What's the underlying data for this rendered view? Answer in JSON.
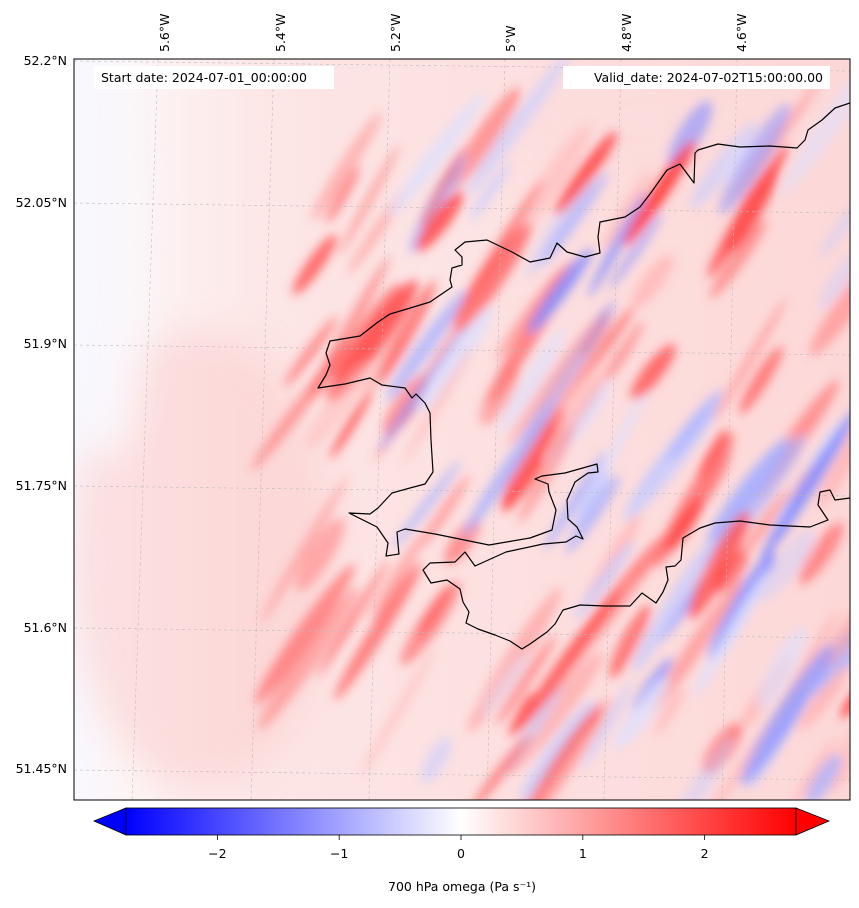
{
  "map": {
    "start_date_label": "Start date: 2024-07-01_00:00:00",
    "valid_date_label": "Valid_date: 2024-07-02T15:00:00.00",
    "lon_ticks": [
      "5.6°W",
      "5.4°W",
      "5.2°W",
      "5°W",
      "4.8°W",
      "4.6°W"
    ],
    "lat_ticks": [
      "52.2°N",
      "52.05°N",
      "51.9°N",
      "51.75°N",
      "51.6°N",
      "51.45°N"
    ],
    "field": "700 hPa omega",
    "gridlines": true,
    "coastline_color": "#000000"
  },
  "colorbar": {
    "label": "700 hPa omega (Pa s⁻¹)",
    "ticks": [
      "−2",
      "−1",
      "0",
      "1",
      "2"
    ],
    "tick_values": [
      -2,
      -1,
      0,
      1,
      2
    ],
    "range": [
      -2.75,
      2.75
    ],
    "extend": "both",
    "colormap": "bwr",
    "colors": {
      "min": "#0000ff",
      "mid": "#ffffff",
      "max": "#ff0000"
    }
  }
}
